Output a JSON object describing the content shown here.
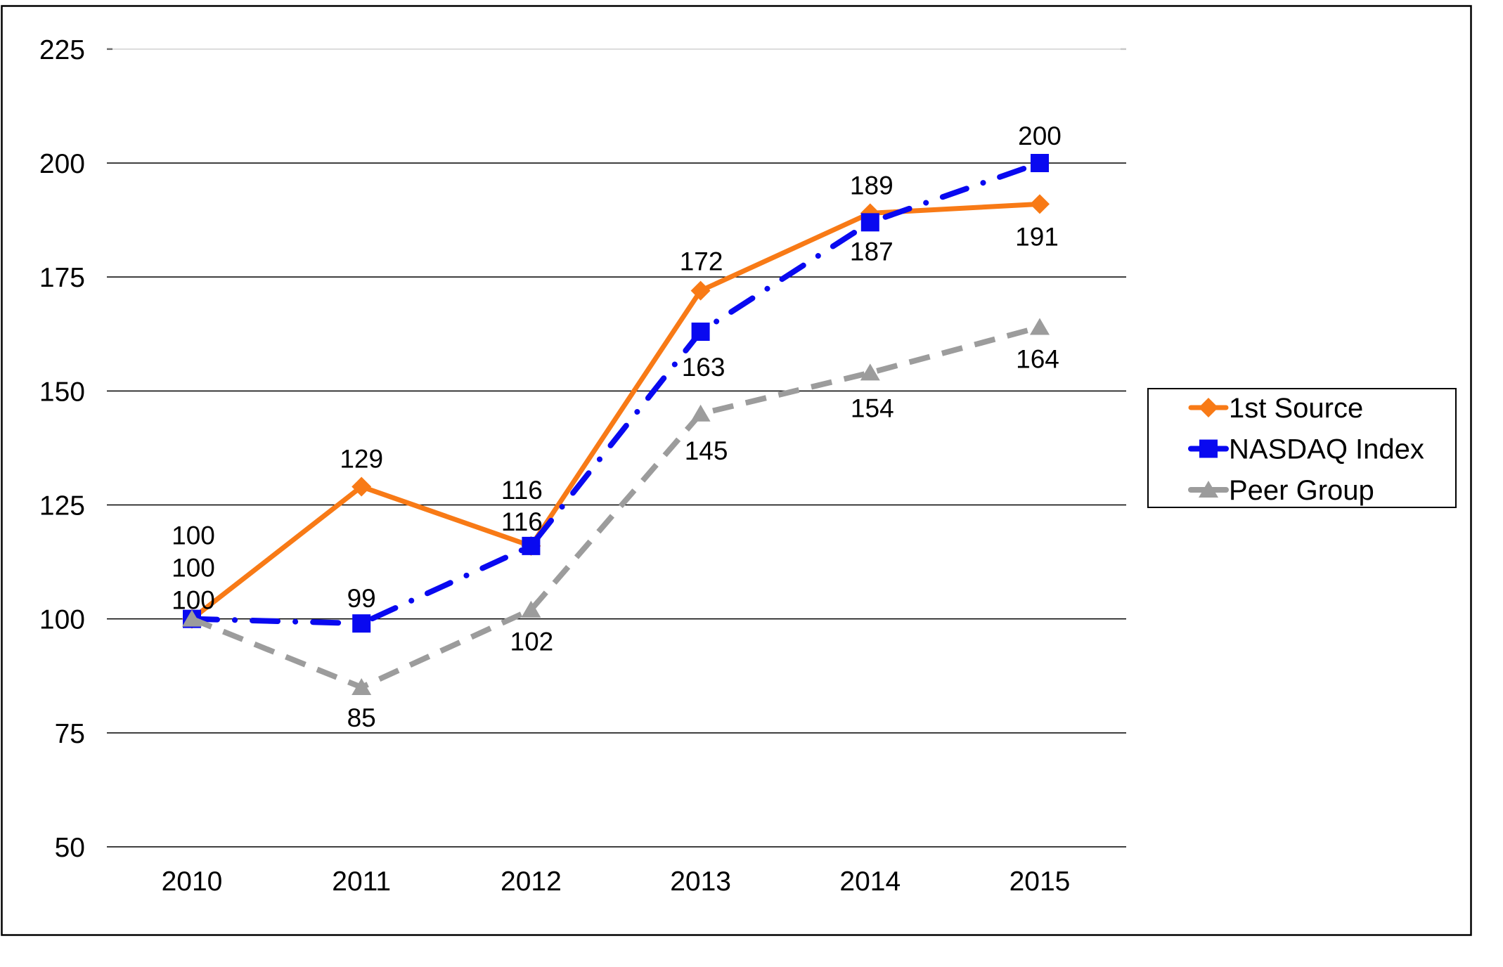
{
  "chart_data": {
    "type": "line",
    "title": "",
    "categories": [
      "2010",
      "2011",
      "2012",
      "2013",
      "2014",
      "2015"
    ],
    "series": [
      {
        "name": "1st Source",
        "color": "#F87A16",
        "marker": "diamond",
        "line_style": "solid",
        "values": [
          100,
          129,
          116,
          172,
          189,
          191
        ]
      },
      {
        "name": "NASDAQ Index",
        "color": "#0909F0",
        "marker": "square",
        "line_style": "dash-dot",
        "values": [
          100,
          99,
          116,
          163,
          187,
          200
        ]
      },
      {
        "name": "Peer Group",
        "color": "#9C9C9C",
        "marker": "triangle",
        "line_style": "dashed",
        "values": [
          100,
          85,
          102,
          145,
          154,
          164
        ]
      }
    ],
    "ylim": [
      50,
      225
    ],
    "yticks": [
      "50",
      "75",
      "100",
      "125",
      "150",
      "175",
      "200",
      "225"
    ],
    "grid": true,
    "data_labels": true,
    "legend": {
      "position": "right",
      "entries": [
        "1st Source",
        "NASDAQ Index",
        "Peer Group"
      ]
    },
    "text_color": "#000000",
    "gridline_color": "#000000",
    "background_color": "#FFFFFF"
  }
}
